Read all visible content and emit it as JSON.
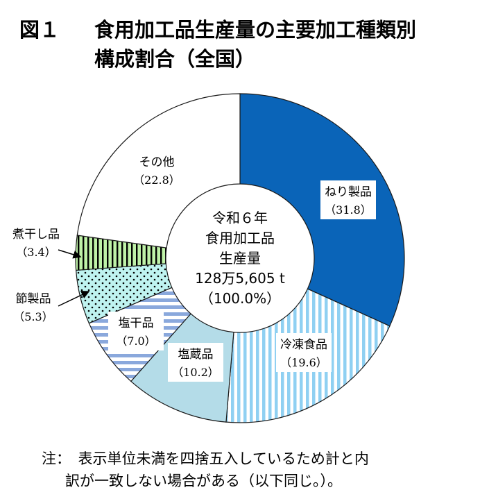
{
  "title": {
    "number": "図１",
    "line1": "食用加工品生産量の主要加工種類別",
    "line2": "構成割合（全国）"
  },
  "chart_data": {
    "type": "pie",
    "variant": "donut",
    "center_label": [
      "令和６年",
      "食用加工品",
      "生産量",
      "128万5,605 t",
      "（100.0%）"
    ],
    "slices": [
      {
        "name": "ねり製品",
        "value": 31.8,
        "value_label": "（31.8）",
        "color": "#0a64b8",
        "pattern": "solid"
      },
      {
        "name": "冷凍食品",
        "value": 19.6,
        "value_label": "（19.6）",
        "color": "#8fd0f2",
        "pattern": "vertical-stripes"
      },
      {
        "name": "塩蔵品",
        "value": 10.2,
        "value_label": "（10.2）",
        "color": "#b4dce8",
        "pattern": "solid"
      },
      {
        "name": "塩干品",
        "value": 7.0,
        "value_label": "（7.0）",
        "color": "#8aa8dc",
        "pattern": "horizontal-stripes"
      },
      {
        "name": "節製品",
        "value": 5.3,
        "value_label": "（5.3）",
        "color": "#bff3f0",
        "pattern": "dots"
      },
      {
        "name": "煮干し品",
        "value": 3.4,
        "value_label": "（3.4）",
        "color": "#bff2a8",
        "pattern": "vertical-bars"
      },
      {
        "name": "その他",
        "value": 22.8,
        "value_label": "（22.8）",
        "color": "#ffffff",
        "pattern": "solid"
      }
    ]
  },
  "note": {
    "line1": "注：　表示単位未満を四捨五入しているため計と内",
    "line2": "訳が一致しない場合がある（以下同じ。）。"
  }
}
